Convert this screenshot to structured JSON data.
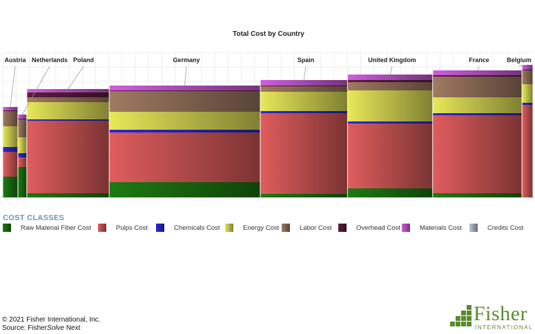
{
  "chart_data": {
    "type": "bar",
    "subtype": "variable-width-stacked (marimekko)",
    "title": "Total Cost by Country",
    "xlabel": "",
    "ylabel": "",
    "grid": true,
    "legend_heading": "COST CLASSES",
    "legend_position": "bottom",
    "categories": [
      "Austria",
      "Netherlands",
      "Poland",
      "Germany",
      "Spain",
      "United Kingdom",
      "France",
      "Belgium"
    ],
    "widths": [
      2.2,
      1.3,
      12,
      22,
      12.7,
      12.4,
      13,
      1.6
    ],
    "series": [
      {
        "name": "Raw Material Fiber Cost",
        "color": "#1d7a12",
        "values": [
          30,
          44,
          6,
          22,
          5,
          13,
          6,
          0
        ]
      },
      {
        "name": "Pulps Cost",
        "color": "#e05d5d",
        "values": [
          36,
          14,
          105,
          72,
          117,
          94,
          113,
          134
        ]
      },
      {
        "name": "Chemicals Cost",
        "color": "#2a2ad8",
        "values": [
          7,
          6,
          2,
          4,
          3,
          3,
          3,
          3
        ]
      },
      {
        "name": "Energy Cost",
        "color": "#e8e85a",
        "values": [
          30,
          23,
          25,
          26,
          28,
          45,
          23,
          27
        ]
      },
      {
        "name": "Labor Cost",
        "color": "#a07a62",
        "values": [
          22,
          26,
          7,
          30,
          8,
          12,
          30,
          20
        ]
      },
      {
        "name": "Overhead Cost",
        "color": "#5a1f3a",
        "values": [
          1,
          1,
          7,
          1,
          1,
          3,
          2,
          1
        ]
      },
      {
        "name": "Materials Cost",
        "color": "#d25ce0",
        "values": [
          5,
          6,
          5,
          7,
          8,
          8,
          7,
          7
        ]
      },
      {
        "name": "Credits Cost",
        "color": "#b9c6d8",
        "values": [
          0,
          0,
          0,
          0,
          0,
          0,
          0,
          0
        ]
      }
    ],
    "ylim": [
      0,
      210
    ]
  },
  "footer": {
    "copyright": "© 2021 Fisher International, Inc.",
    "source_prefix": "Source: Fisher",
    "source_italic": "Solve",
    "source_suffix": " Next"
  },
  "logo": {
    "word": "Fisher",
    "sub": "INTERNATIONAL"
  }
}
